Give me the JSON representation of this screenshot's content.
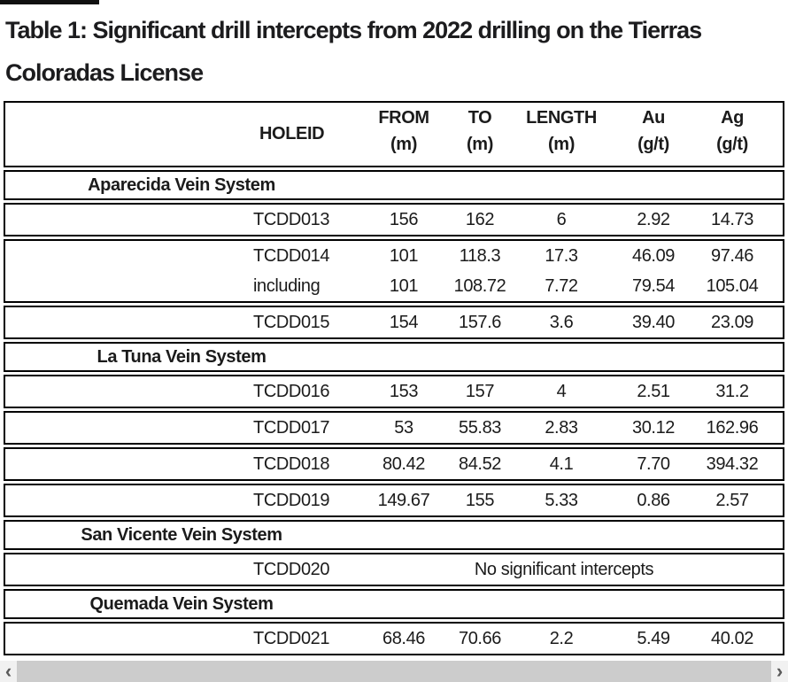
{
  "title": {
    "line1": "Table 1: Significant drill intercepts from 2022 drilling on the Tierras",
    "line2": "Coloradas License"
  },
  "table": {
    "header": {
      "holeid": "HOLEID",
      "cols": [
        {
          "l1": "FROM",
          "l2": "(m)"
        },
        {
          "l1": "TO",
          "l2": "(m)"
        },
        {
          "l1": "LENGTH",
          "l2": "(m)"
        },
        {
          "l1": "Au",
          "l2": "(g/t)"
        },
        {
          "l1": "Ag",
          "l2": "(g/t)"
        }
      ]
    },
    "rows": [
      {
        "type": "section",
        "label": "Aparecida Vein System"
      },
      {
        "type": "data",
        "holeid": "TCDD013",
        "from": "156",
        "to": "162",
        "length": "6",
        "au": "2.92",
        "ag": "14.73"
      },
      {
        "type": "group",
        "rows": [
          {
            "holeid": "TCDD014",
            "from": "101",
            "to": "118.3",
            "length": "17.3",
            "au": "46.09",
            "ag": "97.46"
          },
          {
            "holeid": "including",
            "from": "101",
            "to": "108.72",
            "length": "7.72",
            "au": "79.54",
            "ag": "105.04"
          }
        ]
      },
      {
        "type": "data",
        "holeid": "TCDD015",
        "from": "154",
        "to": "157.6",
        "length": "3.6",
        "au": "39.40",
        "ag": "23.09"
      },
      {
        "type": "section",
        "label": "La Tuna Vein System"
      },
      {
        "type": "data",
        "holeid": "TCDD016",
        "from": "153",
        "to": "157",
        "length": "4",
        "au": "2.51",
        "ag": "31.2"
      },
      {
        "type": "data",
        "holeid": "TCDD017",
        "from": "53",
        "to": "55.83",
        "length": "2.83",
        "au": "30.12",
        "ag": "162.96"
      },
      {
        "type": "data",
        "holeid": "TCDD018",
        "from": "80.42",
        "to": "84.52",
        "length": "4.1",
        "au": "7.70",
        "ag": "394.32"
      },
      {
        "type": "data",
        "holeid": "TCDD019",
        "from": "149.67",
        "to": "155",
        "length": "5.33",
        "au": "0.86",
        "ag": "2.57"
      },
      {
        "type": "section",
        "label": "San Vicente Vein System"
      },
      {
        "type": "note",
        "holeid": "TCDD020",
        "note": "No significant intercepts"
      },
      {
        "type": "section",
        "label": "Quemada Vein System"
      },
      {
        "type": "data",
        "holeid": "TCDD021",
        "from": "68.46",
        "to": "70.66",
        "length": "2.2",
        "au": "5.49",
        "ag": "40.02"
      }
    ]
  },
  "scrollbar": {
    "left_arrow": "‹",
    "right_arrow": "›"
  },
  "colors": {
    "text": "#1b1b1b",
    "border": "#000000",
    "scroll_track": "#f1f1f1",
    "scroll_thumb": "#cccccc",
    "scroll_arrow": "#5a5a5a"
  }
}
